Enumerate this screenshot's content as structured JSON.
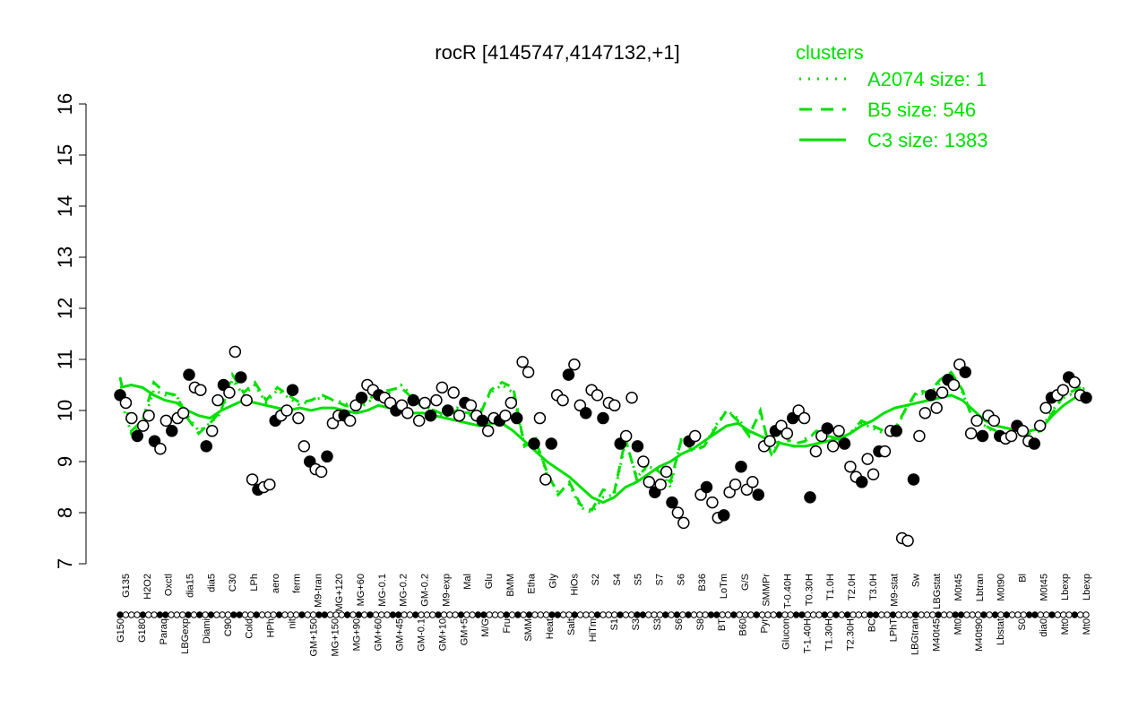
{
  "chart_data": {
    "type": "line",
    "title": "rocR [4145747,4147132,+1]",
    "xlabel": "",
    "ylabel": "",
    "ylim": [
      7,
      16
    ],
    "yticks": [
      7,
      8,
      9,
      10,
      11,
      12,
      13,
      14,
      15,
      16
    ],
    "grid": false,
    "legend": {
      "title": "clusters",
      "position": "top-right",
      "entries": [
        {
          "label": "A2074 size: 1",
          "style": "dotted"
        },
        {
          "label": "B5 size: 546",
          "style": "dashed"
        },
        {
          "label": "C3 size: 1383",
          "style": "solid"
        }
      ]
    },
    "colors": {
      "lines": "#00e000",
      "axis": "#000000",
      "point_stroke": "#000000"
    },
    "x_labels_top": [
      "G135",
      "H2O2",
      "Oxctl",
      "dia15",
      "dia5",
      "C30",
      "LPh",
      "aero",
      "ferm",
      "M9-tran",
      "MG+120",
      "MG+60",
      "MG-0.1",
      "MG-0.2",
      "GM-0.2",
      "M9-exp",
      "Mal",
      "Glu",
      "BMM",
      "Etha",
      "Gly",
      "HiOs",
      "S2",
      "S4",
      "S5",
      "S7",
      "S6",
      "B36",
      "LoTm",
      "G/S",
      "SMMPr",
      "T-0.40H",
      "T0.30H",
      "T1.0H",
      "T2.0H",
      "T3.0H",
      "M9-stat",
      "Sw",
      "LBGstat",
      "M0t45",
      "Lbtran",
      "M0t90",
      "Bl",
      "M0t45",
      "Lbexp",
      "Lbexp"
    ],
    "x_labels_bottom": [
      "G150",
      "G180",
      "Paraq",
      "LBGexp",
      "Diami",
      "C90",
      "Cold",
      "HPh",
      "nit",
      "GM+150",
      "MG+150",
      "MG+90",
      "GM+60",
      "GM+45",
      "GM-0.1",
      "GM+10",
      "GM+5",
      "M/G",
      "Fru",
      "SMM",
      "Heat",
      "Salt",
      "HiTm",
      "S1",
      "S3",
      "S3",
      "S6",
      "S8",
      "BT",
      "B60",
      "Pyr",
      "Glucon",
      "T-1.40H",
      "T1.30H",
      "T2.30H",
      "BC",
      "LPhT",
      "LBGtran",
      "M40t45",
      "Mt0",
      "M40t90",
      "Lbstat",
      "S0",
      "dia0",
      "Mt0",
      "Mt0"
    ],
    "series": [
      {
        "name": "A2074 size: 1",
        "style": "dotted",
        "values": [
          10.25,
          9.55,
          9.7,
          10.4,
          10.3,
          10.3,
          9.9,
          9.6,
          9.75,
          9.95,
          10.6,
          10.3,
          10.5,
          10.15,
          10.4,
          10.25,
          10.1,
          10.2,
          10.25,
          10.2,
          10.15,
          10.0,
          10.15,
          10.3,
          10.35,
          10.5,
          10.3,
          10.1,
          10.0,
          9.85,
          10.05,
          9.9,
          9.95,
          10.35,
          10.5,
          10.35,
          9.3,
          9.45,
          8.75,
          8.4,
          8.55,
          8.1,
          8.0,
          8.3,
          8.35,
          9.4,
          8.7,
          8.9,
          8.85,
          8.5,
          9.5,
          9.25,
          9.3,
          9.7,
          10.0,
          9.85,
          9.55,
          9.95,
          9.15,
          9.5,
          9.3,
          9.45,
          9.55,
          9.45,
          9.4,
          9.55,
          9.75,
          9.65,
          9.55,
          9.6,
          10.05,
          10.35,
          10.3,
          10.55,
          10.7,
          10.35,
          9.8,
          9.7,
          9.55,
          9.45,
          9.55,
          9.6,
          9.65,
          10.0,
          10.25,
          10.35,
          10.45
        ]
      },
      {
        "name": "B5 size: 546",
        "style": "dashed",
        "values": [
          10.65,
          9.6,
          9.8,
          10.55,
          10.35,
          10.3,
          9.85,
          9.55,
          9.75,
          10.0,
          10.7,
          10.35,
          10.55,
          10.2,
          10.45,
          10.3,
          10.15,
          10.2,
          10.3,
          10.2,
          10.1,
          10.05,
          10.2,
          10.35,
          10.4,
          10.45,
          10.25,
          10.05,
          10.0,
          9.9,
          10.0,
          9.95,
          9.9,
          10.4,
          10.55,
          10.45,
          9.3,
          9.4,
          8.8,
          8.35,
          8.6,
          8.15,
          8.05,
          8.45,
          8.4,
          9.45,
          8.65,
          8.95,
          8.8,
          8.6,
          9.45,
          9.2,
          9.3,
          9.65,
          10.0,
          9.8,
          9.5,
          10.0,
          9.1,
          9.5,
          9.35,
          9.4,
          9.6,
          9.5,
          9.45,
          9.55,
          9.8,
          9.7,
          9.6,
          9.65,
          10.05,
          10.4,
          10.35,
          10.6,
          10.75,
          10.4,
          9.75,
          9.7,
          9.6,
          9.5,
          9.5,
          9.55,
          9.6,
          9.95,
          10.3,
          10.4,
          10.5
        ]
      },
      {
        "name": "C3 size: 1383",
        "style": "solid",
        "values": [
          10.45,
          10.5,
          10.45,
          10.3,
          10.2,
          10.15,
          10.0,
          9.9,
          9.85,
          10.0,
          10.1,
          10.2,
          10.15,
          10.1,
          10.05,
          10.0,
          10.05,
          10.0,
          10.05,
          10.05,
          10.0,
          9.95,
          10.0,
          10.1,
          10.05,
          10.0,
          9.95,
          9.95,
          9.9,
          9.85,
          9.8,
          9.75,
          9.7,
          9.75,
          9.75,
          9.6,
          9.4,
          9.2,
          9.0,
          8.85,
          8.7,
          8.5,
          8.3,
          8.2,
          8.3,
          8.5,
          8.6,
          8.75,
          8.9,
          9.0,
          9.15,
          9.25,
          9.4,
          9.55,
          9.7,
          9.75,
          9.6,
          9.5,
          9.4,
          9.35,
          9.3,
          9.3,
          9.35,
          9.4,
          9.45,
          9.55,
          9.7,
          9.8,
          9.95,
          10.05,
          10.1,
          10.15,
          10.2,
          10.25,
          10.3,
          10.2,
          10.0,
          9.8,
          9.7,
          9.65,
          9.6,
          9.6,
          9.65,
          9.9,
          10.1,
          10.25,
          10.35
        ]
      }
    ],
    "points": [
      {
        "x": 1,
        "y": 10.3
      },
      {
        "x": 1.5,
        "y": 10.15
      },
      {
        "x": 2,
        "y": 9.85
      },
      {
        "x": 2.5,
        "y": 9.5
      },
      {
        "x": 3,
        "y": 9.7
      },
      {
        "x": 3.5,
        "y": 9.9
      },
      {
        "x": 4,
        "y": 9.4
      },
      {
        "x": 4.5,
        "y": 9.25
      },
      {
        "x": 5,
        "y": 9.8
      },
      {
        "x": 5.5,
        "y": 9.6
      },
      {
        "x": 6,
        "y": 9.85
      },
      {
        "x": 6.5,
        "y": 9.95
      },
      {
        "x": 7,
        "y": 10.7
      },
      {
        "x": 7.5,
        "y": 10.45
      },
      {
        "x": 8,
        "y": 10.4
      },
      {
        "x": 8.5,
        "y": 9.3
      },
      {
        "x": 9,
        "y": 9.6
      },
      {
        "x": 9.5,
        "y": 10.2
      },
      {
        "x": 10,
        "y": 10.5
      },
      {
        "x": 10.5,
        "y": 10.35
      },
      {
        "x": 11,
        "y": 11.15
      },
      {
        "x": 11.5,
        "y": 10.65
      },
      {
        "x": 12,
        "y": 10.2
      },
      {
        "x": 12.5,
        "y": 8.65
      },
      {
        "x": 13,
        "y": 8.45
      },
      {
        "x": 13.5,
        "y": 8.5
      },
      {
        "x": 14,
        "y": 8.55
      },
      {
        "x": 14.5,
        "y": 9.8
      },
      {
        "x": 15,
        "y": 9.9
      },
      {
        "x": 15.5,
        "y": 10.0
      },
      {
        "x": 16,
        "y": 10.4
      },
      {
        "x": 16.5,
        "y": 9.85
      },
      {
        "x": 17,
        "y": 9.3
      },
      {
        "x": 17.5,
        "y": 9.0
      },
      {
        "x": 18,
        "y": 8.85
      },
      {
        "x": 18.5,
        "y": 8.8
      },
      {
        "x": 19,
        "y": 9.1
      },
      {
        "x": 19.5,
        "y": 9.75
      },
      {
        "x": 20,
        "y": 9.9
      },
      {
        "x": 20.5,
        "y": 9.9
      },
      {
        "x": 21,
        "y": 9.8
      },
      {
        "x": 21.5,
        "y": 10.1
      },
      {
        "x": 22,
        "y": 10.25
      },
      {
        "x": 22.5,
        "y": 10.5
      },
      {
        "x": 23,
        "y": 10.4
      },
      {
        "x": 23.5,
        "y": 10.3
      },
      {
        "x": 24,
        "y": 10.25
      },
      {
        "x": 24.5,
        "y": 10.15
      },
      {
        "x": 25,
        "y": 10.0
      },
      {
        "x": 25.5,
        "y": 10.1
      },
      {
        "x": 26,
        "y": 9.95
      },
      {
        "x": 26.5,
        "y": 10.2
      },
      {
        "x": 27,
        "y": 9.8
      },
      {
        "x": 27.5,
        "y": 10.15
      },
      {
        "x": 28,
        "y": 9.9
      },
      {
        "x": 28.5,
        "y": 10.2
      },
      {
        "x": 29,
        "y": 10.45
      },
      {
        "x": 29.5,
        "y": 10.0
      },
      {
        "x": 30,
        "y": 10.35
      },
      {
        "x": 30.5,
        "y": 9.9
      },
      {
        "x": 31,
        "y": 10.15
      },
      {
        "x": 31.5,
        "y": 10.1
      },
      {
        "x": 32,
        "y": 9.9
      },
      {
        "x": 32.5,
        "y": 9.8
      },
      {
        "x": 33,
        "y": 9.6
      },
      {
        "x": 33.5,
        "y": 9.85
      },
      {
        "x": 34,
        "y": 9.8
      },
      {
        "x": 34.5,
        "y": 9.9
      },
      {
        "x": 35,
        "y": 10.15
      },
      {
        "x": 35.5,
        "y": 9.85
      },
      {
        "x": 36,
        "y": 10.95
      },
      {
        "x": 36.5,
        "y": 10.75
      },
      {
        "x": 37,
        "y": 9.35
      },
      {
        "x": 37.5,
        "y": 9.85
      },
      {
        "x": 38,
        "y": 8.65
      },
      {
        "x": 38.5,
        "y": 9.35
      },
      {
        "x": 39,
        "y": 10.3
      },
      {
        "x": 39.5,
        "y": 10.2
      },
      {
        "x": 40,
        "y": 10.7
      },
      {
        "x": 40.5,
        "y": 10.9
      },
      {
        "x": 41,
        "y": 10.1
      },
      {
        "x": 41.5,
        "y": 9.95
      },
      {
        "x": 42,
        "y": 10.4
      },
      {
        "x": 42.5,
        "y": 10.3
      },
      {
        "x": 43,
        "y": 9.85
      },
      {
        "x": 43.5,
        "y": 10.15
      },
      {
        "x": 44,
        "y": 10.1
      },
      {
        "x": 44.5,
        "y": 9.35
      },
      {
        "x": 45,
        "y": 9.5
      },
      {
        "x": 45.5,
        "y": 10.25
      },
      {
        "x": 46,
        "y": 9.3
      },
      {
        "x": 46.5,
        "y": 9.0
      },
      {
        "x": 47,
        "y": 8.6
      },
      {
        "x": 47.5,
        "y": 8.4
      },
      {
        "x": 48,
        "y": 8.55
      },
      {
        "x": 48.5,
        "y": 8.8
      },
      {
        "x": 49,
        "y": 8.2
      },
      {
        "x": 49.5,
        "y": 8.0
      },
      {
        "x": 50,
        "y": 7.8
      },
      {
        "x": 50.5,
        "y": 9.4
      },
      {
        "x": 51,
        "y": 9.5
      },
      {
        "x": 51.5,
        "y": 8.35
      },
      {
        "x": 52,
        "y": 8.5
      },
      {
        "x": 52.5,
        "y": 8.2
      },
      {
        "x": 53,
        "y": 7.9
      },
      {
        "x": 53.5,
        "y": 7.95
      },
      {
        "x": 54,
        "y": 8.4
      },
      {
        "x": 54.5,
        "y": 8.55
      },
      {
        "x": 55,
        "y": 8.9
      },
      {
        "x": 55.5,
        "y": 8.45
      },
      {
        "x": 56,
        "y": 8.6
      },
      {
        "x": 56.5,
        "y": 8.35
      },
      {
        "x": 57,
        "y": 9.3
      },
      {
        "x": 57.5,
        "y": 9.4
      },
      {
        "x": 58,
        "y": 9.6
      },
      {
        "x": 58.5,
        "y": 9.7
      },
      {
        "x": 59,
        "y": 9.55
      },
      {
        "x": 59.5,
        "y": 9.85
      },
      {
        "x": 60,
        "y": 10.0
      },
      {
        "x": 60.5,
        "y": 9.85
      },
      {
        "x": 61,
        "y": 8.3
      },
      {
        "x": 61.5,
        "y": 9.2
      },
      {
        "x": 62,
        "y": 9.5
      },
      {
        "x": 62.5,
        "y": 9.65
      },
      {
        "x": 63,
        "y": 9.3
      },
      {
        "x": 63.5,
        "y": 9.6
      },
      {
        "x": 64,
        "y": 9.35
      },
      {
        "x": 64.5,
        "y": 8.9
      },
      {
        "x": 65,
        "y": 8.7
      },
      {
        "x": 65.5,
        "y": 8.6
      },
      {
        "x": 66,
        "y": 9.05
      },
      {
        "x": 66.5,
        "y": 8.75
      },
      {
        "x": 67,
        "y": 9.2
      },
      {
        "x": 67.5,
        "y": 9.2
      },
      {
        "x": 68,
        "y": 9.6
      },
      {
        "x": 68.5,
        "y": 9.6
      },
      {
        "x": 69,
        "y": 7.5
      },
      {
        "x": 69.5,
        "y": 7.45
      },
      {
        "x": 70,
        "y": 8.65
      },
      {
        "x": 70.5,
        "y": 9.5
      },
      {
        "x": 71,
        "y": 9.95
      },
      {
        "x": 71.5,
        "y": 10.3
      },
      {
        "x": 72,
        "y": 10.05
      },
      {
        "x": 72.5,
        "y": 10.35
      },
      {
        "x": 73,
        "y": 10.6
      },
      {
        "x": 73.5,
        "y": 10.5
      },
      {
        "x": 74,
        "y": 10.9
      },
      {
        "x": 74.5,
        "y": 10.75
      },
      {
        "x": 75,
        "y": 9.55
      },
      {
        "x": 75.5,
        "y": 9.8
      },
      {
        "x": 76,
        "y": 9.5
      },
      {
        "x": 76.5,
        "y": 9.9
      },
      {
        "x": 77,
        "y": 9.8
      },
      {
        "x": 77.5,
        "y": 9.5
      },
      {
        "x": 78,
        "y": 9.45
      },
      {
        "x": 78.5,
        "y": 9.5
      },
      {
        "x": 79,
        "y": 9.7
      },
      {
        "x": 79.5,
        "y": 9.6
      },
      {
        "x": 80,
        "y": 9.4
      },
      {
        "x": 80.5,
        "y": 9.35
      },
      {
        "x": 81,
        "y": 9.7
      },
      {
        "x": 81.5,
        "y": 10.05
      },
      {
        "x": 82,
        "y": 10.25
      },
      {
        "x": 82.5,
        "y": 10.3
      },
      {
        "x": 83,
        "y": 10.4
      },
      {
        "x": 83.5,
        "y": 10.65
      },
      {
        "x": 84,
        "y": 10.55
      },
      {
        "x": 84.5,
        "y": 10.3
      },
      {
        "x": 85,
        "y": 10.25
      }
    ]
  }
}
